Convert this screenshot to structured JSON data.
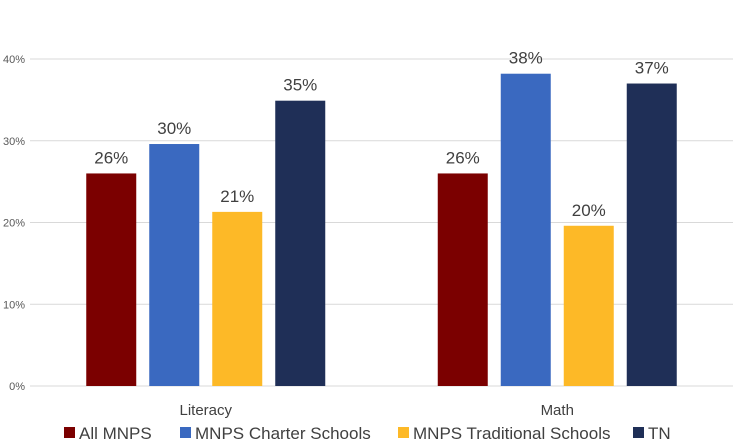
{
  "chart_data": {
    "type": "bar",
    "categories": [
      "Literacy",
      "Math"
    ],
    "series": [
      {
        "name": "All MNPS",
        "values": [
          26,
          26
        ],
        "labels": [
          "26%",
          "26%"
        ],
        "color": "#7b0000"
      },
      {
        "name": "MNPS Charter Schools",
        "values": [
          29.6,
          38.2
        ],
        "labels": [
          "30%",
          "38%"
        ],
        "color": "#3a69c0"
      },
      {
        "name": "MNPS Traditional Schools",
        "values": [
          21.3,
          19.6
        ],
        "labels": [
          "21%",
          "20%"
        ],
        "color": "#fdb927"
      },
      {
        "name": "TN",
        "values": [
          34.9,
          37.0
        ],
        "labels": [
          "35%",
          "37%"
        ],
        "color": "#1f2f57"
      }
    ],
    "yticks": [
      "0%",
      "10%",
      "20%",
      "30%",
      "40%"
    ],
    "ylim": [
      0,
      40
    ],
    "grid": true,
    "legend_position": "bottom",
    "title": "",
    "xlabel": "",
    "ylabel": ""
  }
}
